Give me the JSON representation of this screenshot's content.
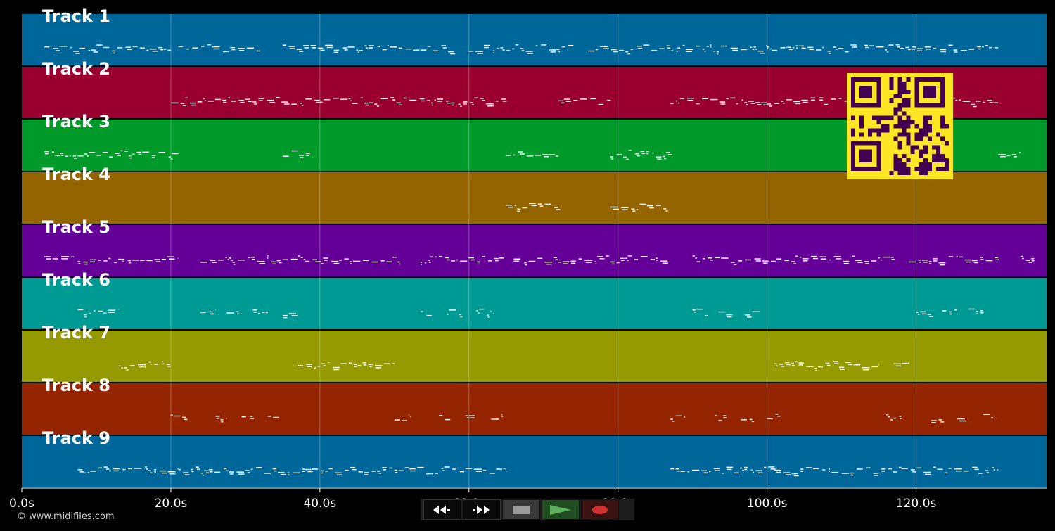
{
  "app": {
    "copyright": "© www.midifiles.com"
  },
  "timeline": {
    "max_seconds": 137.5,
    "gridlines": [
      20,
      40,
      60,
      80,
      100,
      120
    ],
    "ticks": [
      {
        "t": 0,
        "label": "0.0s"
      },
      {
        "t": 20,
        "label": "20.0s"
      },
      {
        "t": 40,
        "label": "40.0s"
      },
      {
        "t": 60,
        "label": "60.0s"
      },
      {
        "t": 80,
        "label": "80.0s"
      },
      {
        "t": 100,
        "label": "100.0s"
      },
      {
        "t": 120,
        "label": "120.0s"
      }
    ]
  },
  "tracks": [
    {
      "name": "Track 1",
      "color": "#00679a",
      "notes": [
        [
          3,
          10
        ],
        [
          10,
          20
        ],
        [
          21,
          32
        ],
        [
          35,
          58
        ],
        [
          60,
          74
        ],
        [
          76,
          88
        ],
        [
          88,
          100
        ],
        [
          100,
          112
        ],
        [
          113,
          125
        ],
        [
          125,
          131
        ]
      ]
    },
    {
      "name": "Track 2",
      "color": "#99002f",
      "notes": [
        [
          20,
          40
        ],
        [
          40,
          46
        ],
        [
          46,
          65
        ],
        [
          72,
          79
        ],
        [
          87,
          100
        ],
        [
          100,
          111
        ],
        [
          124,
          131
        ]
      ]
    },
    {
      "name": "Track 3",
      "color": "#009a2b",
      "notes": [
        [
          3,
          10
        ],
        [
          10,
          21
        ],
        [
          35,
          39
        ],
        [
          65,
          72
        ],
        [
          79,
          87
        ],
        [
          131,
          134
        ]
      ]
    },
    {
      "name": "Track 4",
      "color": "#946400",
      "notes": [
        [
          65,
          72
        ],
        [
          79,
          86.5
        ]
      ]
    },
    {
      "name": "Track 5",
      "color": "#640097",
      "notes": [
        [
          3,
          7
        ],
        [
          7.5,
          21
        ],
        [
          24,
          37
        ],
        [
          37,
          51
        ],
        [
          53.5,
          65
        ],
        [
          66,
          87
        ],
        [
          90,
          117
        ],
        [
          119,
          131
        ],
        [
          134,
          136
        ]
      ]
    },
    {
      "name": "Track 6",
      "color": "#009a95",
      "notes": [
        [
          7.5,
          13
        ],
        [
          24,
          26
        ],
        [
          27.5,
          29.5
        ],
        [
          31,
          33
        ],
        [
          35,
          37
        ],
        [
          53.5,
          55
        ],
        [
          57,
          59
        ],
        [
          61,
          63
        ],
        [
          90,
          92
        ],
        [
          93.5,
          95.5
        ],
        [
          97,
          99
        ],
        [
          120,
          122
        ],
        [
          123.5,
          125.5
        ],
        [
          127,
          129
        ]
      ]
    },
    {
      "name": "Track 7",
      "color": "#949a00",
      "notes": [
        [
          13,
          20
        ],
        [
          37,
          50
        ],
        [
          101,
          115
        ],
        [
          117,
          119
        ]
      ]
    },
    {
      "name": "Track 8",
      "color": "#952400",
      "notes": [
        [
          20,
          22
        ],
        [
          26,
          27.5
        ],
        [
          29.5,
          31
        ],
        [
          33,
          34.5
        ],
        [
          50,
          52
        ],
        [
          56,
          57.5
        ],
        [
          59.5,
          61
        ],
        [
          63,
          64.5
        ],
        [
          87,
          89
        ],
        [
          93,
          94.5
        ],
        [
          96.5,
          98
        ],
        [
          100,
          101.5
        ],
        [
          116,
          118
        ],
        [
          122,
          123.5
        ],
        [
          125.5,
          127
        ],
        [
          129,
          130.5
        ]
      ]
    },
    {
      "name": "Track 9",
      "color": "#00679a",
      "notes": [
        [
          7.5,
          21
        ],
        [
          21,
          38
        ],
        [
          38,
          52
        ],
        [
          52,
          65
        ],
        [
          87,
          101
        ],
        [
          101,
          118
        ],
        [
          118,
          131
        ]
      ]
    }
  ],
  "transport": {
    "buttons": [
      {
        "name": "rewind-button",
        "icon": "rewind-icon"
      },
      {
        "name": "fast-forward-button",
        "icon": "fast-forward-icon"
      },
      {
        "name": "stop-button",
        "icon": "stop-icon"
      },
      {
        "name": "play-button",
        "icon": "play-icon"
      },
      {
        "name": "record-button",
        "icon": "record-icon"
      }
    ]
  },
  "qr_code": {
    "icon": "qr-code-icon",
    "color": "#fde724",
    "dark": "#440154"
  }
}
